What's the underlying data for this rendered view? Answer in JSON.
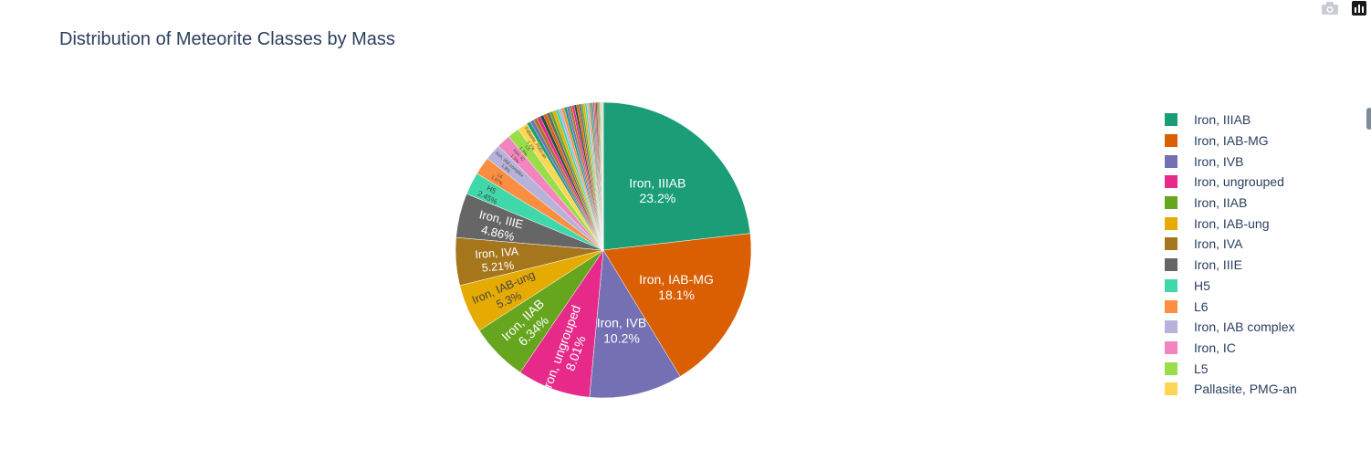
{
  "title": "Distribution of Meteorite Classes by Mass",
  "chart_data": {
    "type": "pie",
    "title": "Distribution of Meteorite Classes by Mass",
    "slices": [
      {
        "label": "Iron, IIIAB",
        "percent": 23.2,
        "color": "#1b9e77"
      },
      {
        "label": "Iron, IAB-MG",
        "percent": 18.1,
        "color": "#d95f02"
      },
      {
        "label": "Iron, IVB",
        "percent": 10.2,
        "color": "#7570b3"
      },
      {
        "label": "Iron, ungrouped",
        "percent": 8.01,
        "color": "#e7298a"
      },
      {
        "label": "Iron, IIAB",
        "percent": 6.34,
        "color": "#66a61e"
      },
      {
        "label": "Iron, IAB-ung",
        "percent": 5.3,
        "color": "#e6ab02"
      },
      {
        "label": "Iron, IVA",
        "percent": 5.21,
        "color": "#a6761d"
      },
      {
        "label": "Iron, IIIE",
        "percent": 4.86,
        "color": "#666666"
      },
      {
        "label": "H5",
        "percent": 2.45,
        "color": "#40d8aa"
      },
      {
        "label": "L6",
        "percent": 1.97,
        "color": "#fb8e40"
      },
      {
        "label": "Iron, IAB complex",
        "percent": 1.8,
        "color": "#b7b2d9"
      },
      {
        "label": "Iron, IC",
        "percent": 1.5,
        "color": "#f285bd"
      },
      {
        "label": "L5",
        "percent": 1.3,
        "color": "#99de4a"
      },
      {
        "label": "Pallasite, PMG-an",
        "percent": 1.1,
        "color": "#fed652"
      }
    ],
    "other_colors": [
      "#1b9e77",
      "#7570b3",
      "#a6761d",
      "#e7298a",
      "#1f4e3d",
      "#d95f02",
      "#666666",
      "#66a61e",
      "#e6ab02",
      "#40d8aa",
      "#b7b2d9",
      "#fb8e40"
    ],
    "legend_position": "right",
    "text_info": "label+percent"
  },
  "modebar": {
    "camera_icon": "camera-icon",
    "plotly_icon": "plotly-logo-icon"
  }
}
